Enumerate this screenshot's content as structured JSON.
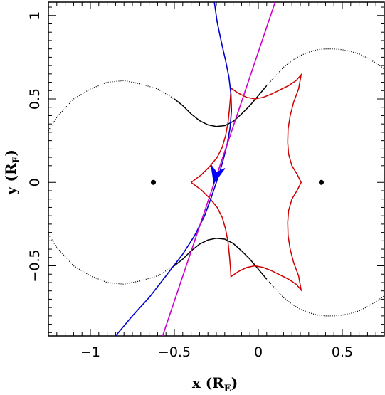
{
  "chart_data": {
    "type": "line",
    "title": "",
    "xlabel": {
      "main": "x (R",
      "sub": "E",
      "close": ")"
    },
    "ylabel": {
      "main": "y (R",
      "sub": "E",
      "close": ")"
    },
    "xlim": [
      -1.25,
      0.75
    ],
    "ylim": [
      -0.92,
      1.08
    ],
    "x_ticks": [
      -1,
      -0.5,
      0,
      0.5
    ],
    "x_tick_labels": [
      "−1",
      "−0.5",
      "0",
      "0.5"
    ],
    "y_ticks": [
      -0.5,
      0,
      0.5,
      1
    ],
    "y_tick_labels": [
      "−0.5",
      "0",
      "0.5",
      "1"
    ],
    "grid": false,
    "lens_positions": [
      {
        "x": -0.625,
        "y": 0.0
      },
      {
        "x": 0.375,
        "y": 0.0
      }
    ],
    "critical_curve": {
      "color": "#000000",
      "style": "dotted",
      "upper": [
        [
          -1.25,
          0.31
        ],
        [
          -1.2,
          0.39
        ],
        [
          -1.1,
          0.5
        ],
        [
          -1.0,
          0.56
        ],
        [
          -0.9,
          0.6
        ],
        [
          -0.8,
          0.61
        ],
        [
          -0.7,
          0.59
        ],
        [
          -0.6,
          0.56
        ],
        [
          -0.5,
          0.5
        ],
        [
          -0.45,
          0.46
        ],
        [
          -0.4,
          0.41
        ],
        [
          -0.35,
          0.37
        ],
        [
          -0.3,
          0.345
        ],
        [
          -0.25,
          0.335
        ],
        [
          -0.2,
          0.34
        ],
        [
          -0.15,
          0.365
        ],
        [
          -0.1,
          0.41
        ],
        [
          -0.05,
          0.46
        ],
        [
          0.0,
          0.52
        ],
        [
          0.05,
          0.58
        ],
        [
          0.1,
          0.635
        ],
        [
          0.15,
          0.69
        ],
        [
          0.2,
          0.73
        ],
        [
          0.25,
          0.76
        ],
        [
          0.3,
          0.78
        ],
        [
          0.35,
          0.795
        ],
        [
          0.4,
          0.8
        ],
        [
          0.45,
          0.8
        ],
        [
          0.5,
          0.795
        ],
        [
          0.55,
          0.785
        ],
        [
          0.6,
          0.77
        ],
        [
          0.65,
          0.745
        ],
        [
          0.7,
          0.715
        ],
        [
          0.75,
          0.68
        ]
      ],
      "lower": [
        [
          -1.25,
          -0.31
        ],
        [
          -1.2,
          -0.39
        ],
        [
          -1.1,
          -0.5
        ],
        [
          -1.0,
          -0.56
        ],
        [
          -0.9,
          -0.6
        ],
        [
          -0.8,
          -0.61
        ],
        [
          -0.7,
          -0.59
        ],
        [
          -0.6,
          -0.56
        ],
        [
          -0.5,
          -0.5
        ],
        [
          -0.45,
          -0.46
        ],
        [
          -0.4,
          -0.41
        ],
        [
          -0.35,
          -0.37
        ],
        [
          -0.3,
          -0.345
        ],
        [
          -0.25,
          -0.335
        ],
        [
          -0.2,
          -0.34
        ],
        [
          -0.15,
          -0.365
        ],
        [
          -0.1,
          -0.41
        ],
        [
          -0.05,
          -0.46
        ],
        [
          0.0,
          -0.52
        ],
        [
          0.05,
          -0.58
        ],
        [
          0.1,
          -0.635
        ],
        [
          0.15,
          -0.69
        ],
        [
          0.2,
          -0.73
        ],
        [
          0.25,
          -0.76
        ],
        [
          0.3,
          -0.78
        ],
        [
          0.35,
          -0.795
        ],
        [
          0.4,
          -0.8
        ],
        [
          0.45,
          -0.8
        ],
        [
          0.5,
          -0.795
        ],
        [
          0.55,
          -0.785
        ],
        [
          0.6,
          -0.77
        ],
        [
          0.65,
          -0.745
        ],
        [
          0.7,
          -0.715
        ],
        [
          0.75,
          -0.68
        ]
      ],
      "solid_range": [
        -0.55,
        0.05
      ]
    },
    "caustic": {
      "color": "#cc0000",
      "points": [
        [
          -0.4,
          0.0
        ],
        [
          -0.34,
          0.045
        ],
        [
          -0.29,
          0.095
        ],
        [
          -0.245,
          0.15
        ],
        [
          -0.215,
          0.21
        ],
        [
          -0.195,
          0.28
        ],
        [
          -0.18,
          0.36
        ],
        [
          -0.172,
          0.44
        ],
        [
          -0.166,
          0.51
        ],
        [
          -0.163,
          0.565
        ],
        [
          -0.12,
          0.535
        ],
        [
          -0.07,
          0.51
        ],
        [
          -0.02,
          0.5
        ],
        [
          0.03,
          0.51
        ],
        [
          0.08,
          0.53
        ],
        [
          0.13,
          0.555
        ],
        [
          0.18,
          0.58
        ],
        [
          0.225,
          0.61
        ],
        [
          0.255,
          0.645
        ],
        [
          0.24,
          0.56
        ],
        [
          0.21,
          0.48
        ],
        [
          0.19,
          0.4
        ],
        [
          0.177,
          0.32
        ],
        [
          0.175,
          0.24
        ],
        [
          0.18,
          0.17
        ],
        [
          0.2,
          0.1
        ],
        [
          0.23,
          0.05
        ],
        [
          0.255,
          0.0
        ],
        [
          0.23,
          -0.05
        ],
        [
          0.2,
          -0.1
        ],
        [
          0.18,
          -0.17
        ],
        [
          0.175,
          -0.24
        ],
        [
          0.177,
          -0.32
        ],
        [
          0.19,
          -0.4
        ],
        [
          0.21,
          -0.48
        ],
        [
          0.24,
          -0.56
        ],
        [
          0.255,
          -0.645
        ],
        [
          0.225,
          -0.61
        ],
        [
          0.18,
          -0.58
        ],
        [
          0.13,
          -0.555
        ],
        [
          0.08,
          -0.53
        ],
        [
          0.03,
          -0.51
        ],
        [
          -0.02,
          -0.5
        ],
        [
          -0.07,
          -0.51
        ],
        [
          -0.12,
          -0.535
        ],
        [
          -0.163,
          -0.565
        ],
        [
          -0.166,
          -0.51
        ],
        [
          -0.172,
          -0.44
        ],
        [
          -0.18,
          -0.36
        ],
        [
          -0.195,
          -0.28
        ],
        [
          -0.215,
          -0.21
        ],
        [
          -0.245,
          -0.15
        ],
        [
          -0.29,
          -0.095
        ],
        [
          -0.34,
          -0.045
        ],
        [
          -0.4,
          0.0
        ]
      ]
    },
    "series": [
      {
        "color": "#0000cc",
        "points": [
          [
            -0.85,
            -0.92
          ],
          [
            -0.75,
            -0.8
          ],
          [
            -0.65,
            -0.69
          ],
          [
            -0.55,
            -0.56
          ],
          [
            -0.45,
            -0.43
          ],
          [
            -0.38,
            -0.32
          ],
          [
            -0.32,
            -0.2
          ],
          [
            -0.28,
            -0.09
          ],
          [
            -0.24,
            0.03
          ],
          [
            -0.21,
            0.13
          ],
          [
            -0.185,
            0.23
          ],
          [
            -0.168,
            0.33
          ],
          [
            -0.16,
            0.43
          ],
          [
            -0.163,
            0.53
          ],
          [
            -0.175,
            0.63
          ],
          [
            -0.195,
            0.73
          ],
          [
            -0.22,
            0.84
          ],
          [
            -0.245,
            0.96
          ],
          [
            -0.262,
            1.08
          ]
        ]
      },
      {
        "color": "#cc00cc",
        "points": [
          [
            -0.57,
            -0.92
          ],
          [
            0.1,
            1.08
          ]
        ]
      }
    ],
    "arrow": {
      "x": -0.235,
      "y": 0.115,
      "dx": -0.03,
      "dy": -0.12,
      "color": "#0000ff"
    }
  }
}
